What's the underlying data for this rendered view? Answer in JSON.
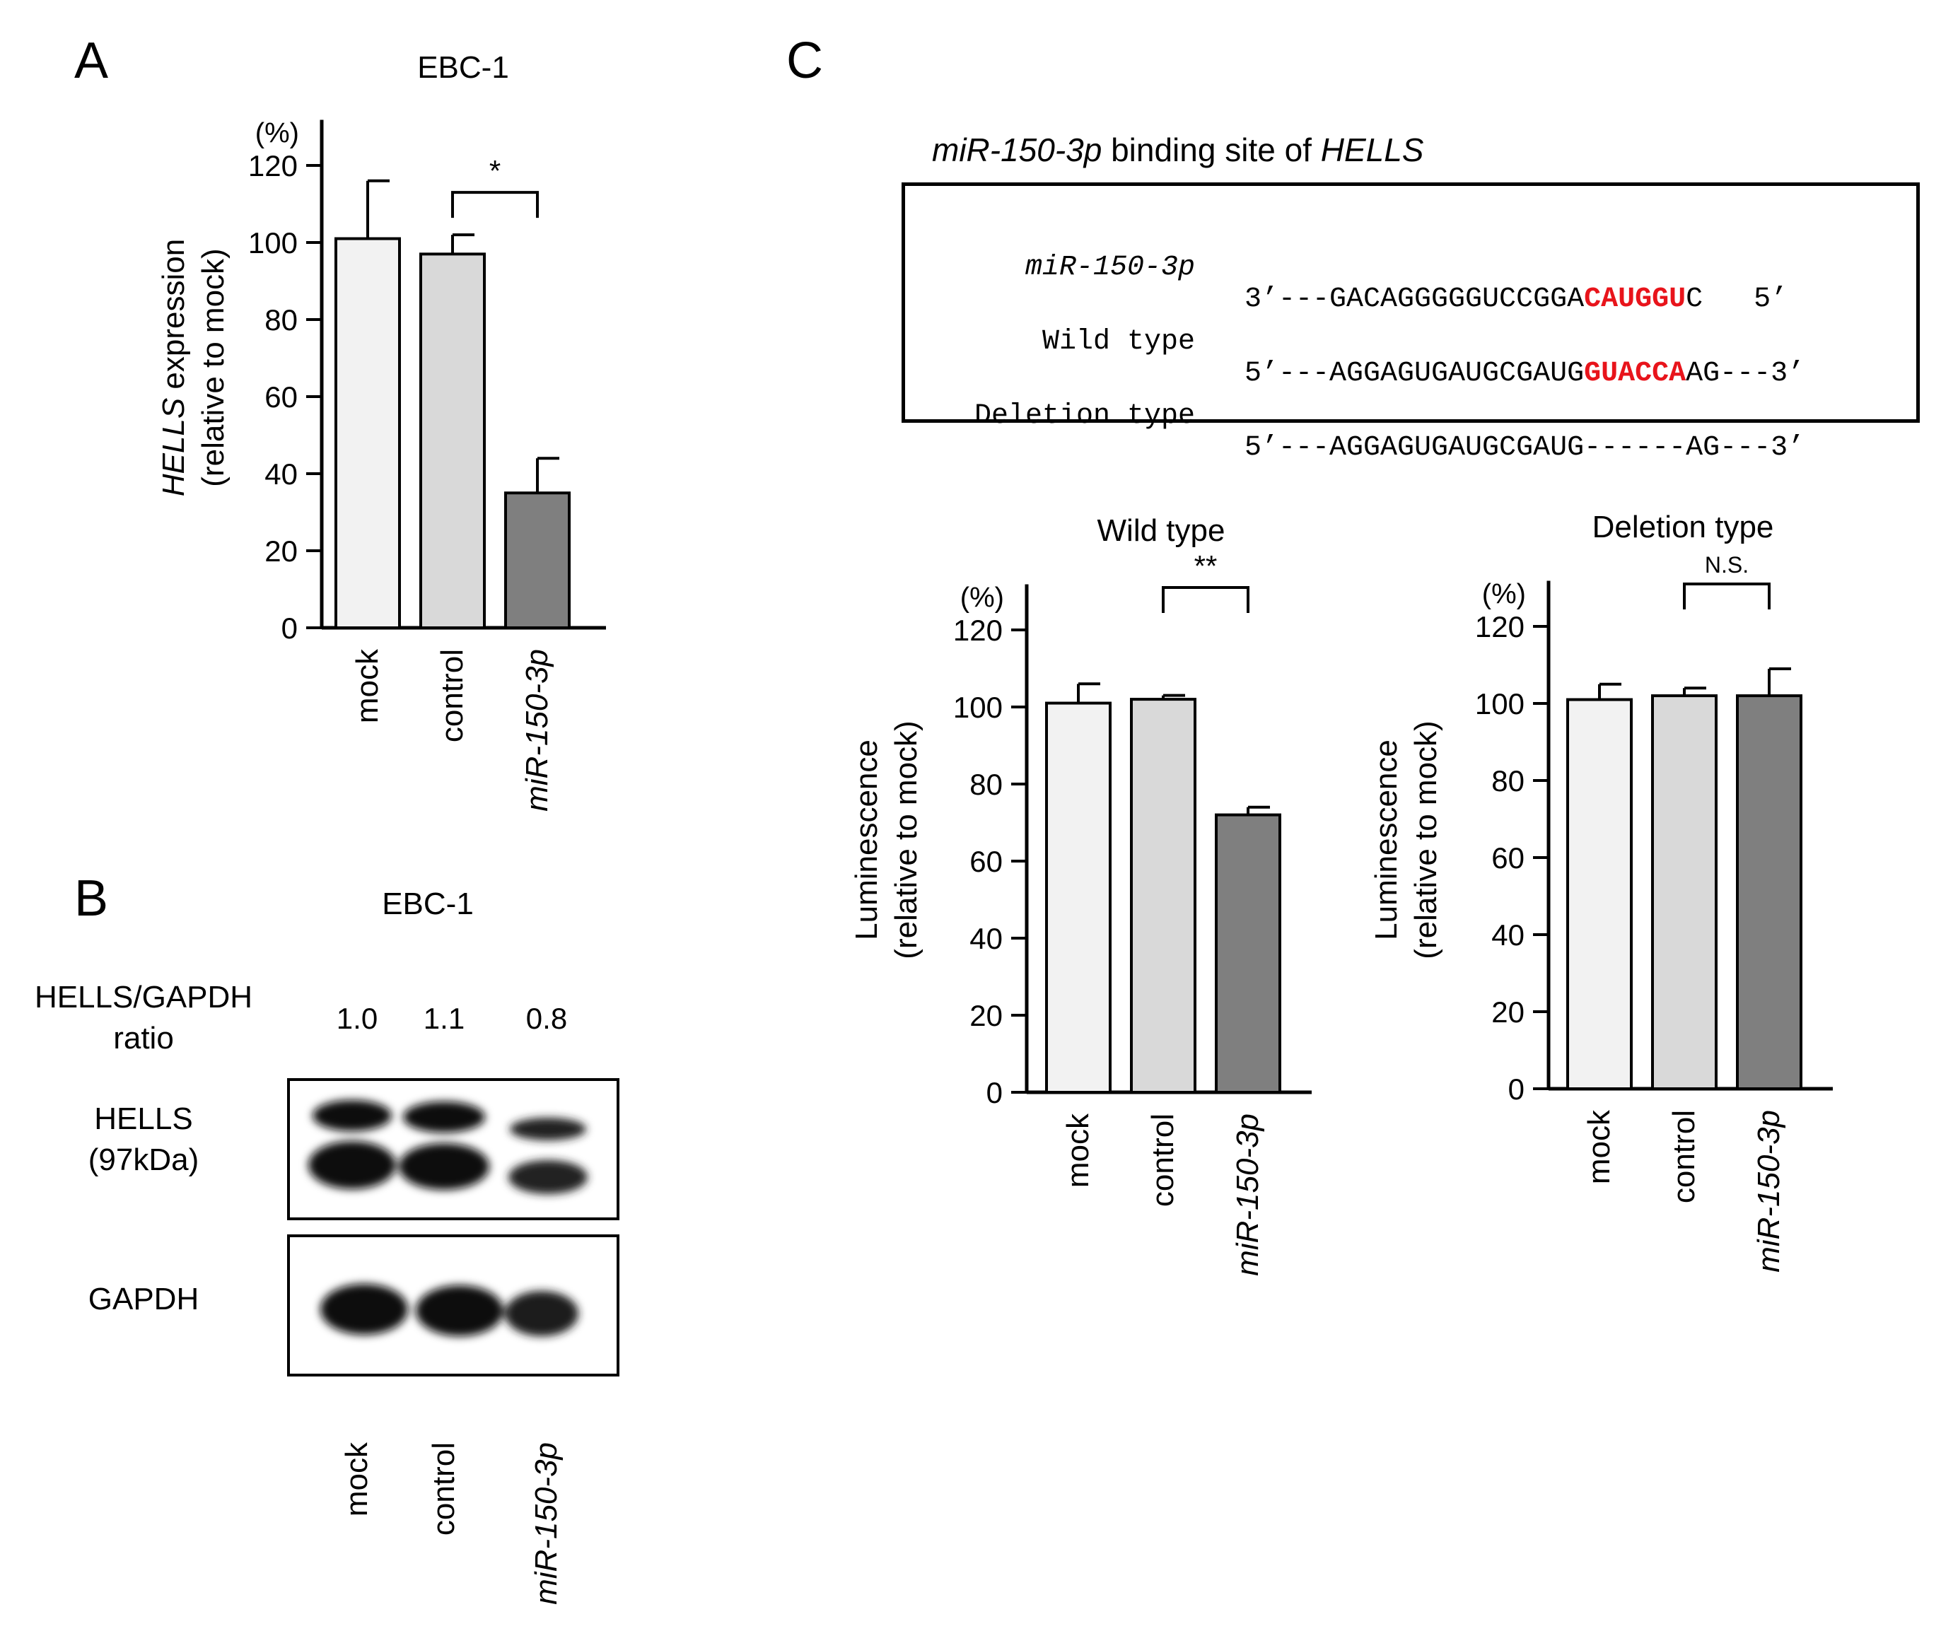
{
  "panel_labels": {
    "a": "A",
    "b": "B",
    "c": "C"
  },
  "colors": {
    "mock": "#f2f2f2",
    "control": "#d9d9d9",
    "mir": "#7f7f7f",
    "highlight": "#e8141b"
  },
  "chart_data": [
    {
      "id": "A",
      "type": "bar",
      "title": "EBC-1",
      "unit_label": "(%)",
      "ylabel_italic": "HELLS",
      "ylabel_rest": " expression",
      "ylabel_line2": "(relative to mock)",
      "categories": [
        "mock",
        "control",
        "miR-150-3p"
      ],
      "values": [
        101,
        97,
        35
      ],
      "errors": [
        15,
        5,
        9
      ],
      "ylim": [
        0,
        130
      ],
      "yticks": [
        0,
        20,
        40,
        60,
        80,
        100,
        120
      ],
      "significance": {
        "from": 1,
        "to": 2,
        "label": "*"
      }
    },
    {
      "id": "C-wild",
      "type": "bar",
      "title": "Wild type",
      "unit_label": "(%)",
      "ylabel_line1": "Luminescence",
      "ylabel_line2": "(relative to mock)",
      "categories": [
        "mock",
        "control",
        "miR-150-3p"
      ],
      "values": [
        101,
        102,
        72
      ],
      "errors": [
        5,
        1,
        2
      ],
      "ylim": [
        0,
        130
      ],
      "yticks": [
        0,
        20,
        40,
        60,
        80,
        100,
        120
      ],
      "significance": {
        "from": 1,
        "to": 2,
        "label": "**"
      }
    },
    {
      "id": "C-deletion",
      "type": "bar",
      "title": "Deletion type",
      "unit_label": "(%)",
      "ylabel_line1": "Luminescence",
      "ylabel_line2": "(relative to mock)",
      "categories": [
        "mock",
        "control",
        "miR-150-3p"
      ],
      "values": [
        101,
        102,
        102
      ],
      "errors": [
        4,
        2,
        7
      ],
      "ylim": [
        0,
        130
      ],
      "yticks": [
        0,
        20,
        40,
        60,
        80,
        100,
        120
      ],
      "significance": {
        "from": 1,
        "to": 2,
        "label": "N.S."
      }
    }
  ],
  "western": {
    "title": "EBC-1",
    "ratio_label_line1": "HELLS/GAPDH",
    "ratio_label_line2": "ratio",
    "ratios": [
      "1.0",
      "1.1",
      "0.8"
    ],
    "hells_label_line1": "HELLS",
    "hells_label_line2": "(97kDa)",
    "gapdh_label": "GAPDH",
    "lanes": [
      "mock",
      "control",
      "miR-150-3p"
    ]
  },
  "binding": {
    "title_italic": "miR-150-3p",
    "title_mid": " binding site of ",
    "title_italic2": "HELLS",
    "rows": [
      {
        "label": "miR-150-3p",
        "pre": "3’---GACAGGGGGUCCGGA",
        "hl": "CAUGGU",
        "post": "C   5’"
      },
      {
        "label": "Wild type",
        "pre": "5’---AGGAGUGAUGCGAUG",
        "hl": "GUACCA",
        "post": "AG---3’"
      },
      {
        "label": "Deletion type",
        "pre": "5’---AGGAGUGAUGCGAUG------AG---3’",
        "hl": "",
        "post": ""
      }
    ]
  }
}
